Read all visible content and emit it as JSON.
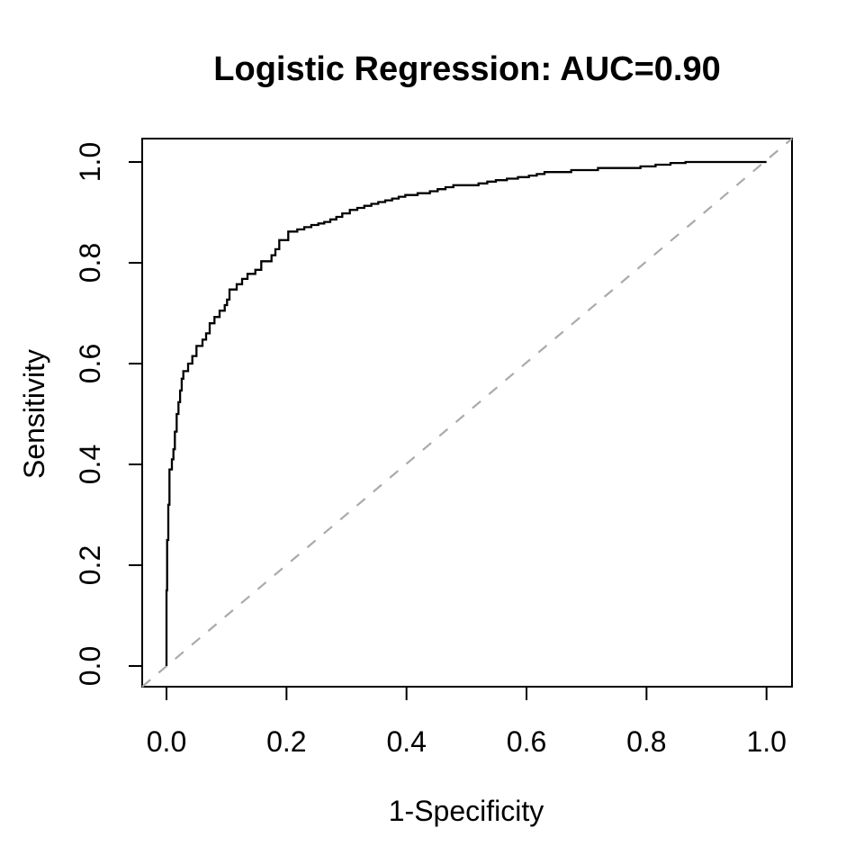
{
  "figure": {
    "background_color": "#FFFFFF",
    "text_color": "#000000",
    "box_color": "#000000"
  },
  "chart_data": {
    "type": "line",
    "subtype": "roc-curve",
    "title": "Logistic Regression: AUC=0.90",
    "xlabel": "1-Specificity",
    "ylabel": "Sensitivity",
    "auc": 0.9,
    "xlim": [
      0.0,
      1.0
    ],
    "ylim": [
      0.0,
      1.0
    ],
    "grid": false,
    "legend": "none",
    "x_ticks": [
      0.0,
      0.2,
      0.4,
      0.6,
      0.8,
      1.0
    ],
    "x_tick_labels": [
      "0.0",
      "0.2",
      "0.4",
      "0.6",
      "0.8",
      "1.0"
    ],
    "y_ticks": [
      0.0,
      0.2,
      0.4,
      0.6,
      0.8,
      1.0
    ],
    "y_tick_labels": [
      "0.0",
      "0.2",
      "0.4",
      "0.6",
      "0.8",
      "1.0"
    ],
    "series": [
      {
        "name": "ROC curve (Logistic Regression)",
        "style": "step",
        "color": "#000000",
        "line_width": 2.3,
        "points": [
          [
            0.0,
            0.0
          ],
          [
            0.001,
            0.15
          ],
          [
            0.003,
            0.25
          ],
          [
            0.005,
            0.32
          ],
          [
            0.009,
            0.39
          ],
          [
            0.014,
            0.43
          ],
          [
            0.02,
            0.5
          ],
          [
            0.028,
            0.57
          ],
          [
            0.036,
            0.585
          ],
          [
            0.05,
            0.615
          ],
          [
            0.06,
            0.635
          ],
          [
            0.072,
            0.66
          ],
          [
            0.08,
            0.68
          ],
          [
            0.097,
            0.705
          ],
          [
            0.105,
            0.727
          ],
          [
            0.117,
            0.747
          ],
          [
            0.135,
            0.768
          ],
          [
            0.148,
            0.778
          ],
          [
            0.158,
            0.786
          ],
          [
            0.175,
            0.803
          ],
          [
            0.188,
            0.827
          ],
          [
            0.203,
            0.845
          ],
          [
            0.218,
            0.862
          ],
          [
            0.253,
            0.875
          ],
          [
            0.273,
            0.881
          ],
          [
            0.293,
            0.891
          ],
          [
            0.318,
            0.905
          ],
          [
            0.353,
            0.917
          ],
          [
            0.376,
            0.924
          ],
          [
            0.398,
            0.931
          ],
          [
            0.439,
            0.938
          ],
          [
            0.478,
            0.95
          ],
          [
            0.52,
            0.954
          ],
          [
            0.549,
            0.961
          ],
          [
            0.604,
            0.97
          ],
          [
            0.63,
            0.976
          ],
          [
            0.719,
            0.984
          ],
          [
            0.79,
            0.988
          ],
          [
            0.865,
            0.998
          ],
          [
            0.935,
            1.0
          ],
          [
            1.0,
            1.0
          ]
        ]
      },
      {
        "name": "chance diagonal",
        "style": "reference",
        "color": "#AAAAAA",
        "line_style": "dashed",
        "line_width": 2.2,
        "points": [
          [
            0.0,
            0.0
          ],
          [
            1.0,
            1.0
          ]
        ]
      }
    ]
  }
}
